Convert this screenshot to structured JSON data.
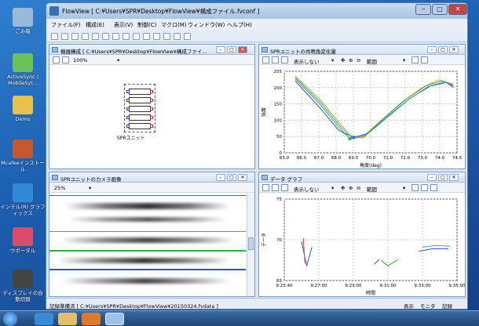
{
  "desktop": {
    "icons": [
      {
        "label": "ごみ箱",
        "color": "#9ab8d8"
      },
      {
        "label": "ActiveSync / MobileSyt...",
        "color": "#6bc25a"
      },
      {
        "label": "Demo",
        "color": "#e8c24a"
      },
      {
        "label": "Mcafeeインストール",
        "color": "#c7582e"
      },
      {
        "label": "インテル(R) グラフィックス",
        "color": "#2e8ad4"
      },
      {
        "label": "ウポータル",
        "color": "#d94d6a"
      },
      {
        "label": "ディスプレイの自動切替",
        "color": "#444444"
      }
    ]
  },
  "window": {
    "title": "FlowView [ C:¥Users¥SPR¥Desktop¥FlowView¥構成ファイル.fvconf ]",
    "menu": [
      "ファイル(F)",
      "構成(E)",
      "表示(V)",
      "制御(C)",
      "マクロ(M)",
      "ウィンドウ(W)",
      "ヘルプ(H)"
    ]
  },
  "panes": {
    "config": {
      "title": "機器構成 [ C:¥Users¥SPR¥Desktop¥FlowView¥構成ファイ...",
      "zoom": "100%",
      "unit_label": "SPRユニット"
    },
    "resonance": {
      "title": "SPRユニットの共鳴角変化量",
      "display_mode": "表示しない",
      "range_label": "範囲"
    },
    "camera": {
      "title": "SPRユニットのカメラ画像",
      "zoom": "25%"
    },
    "datagraph": {
      "title": "データ グラフ",
      "display_mode": "表示しない",
      "range_label": "範囲"
    }
  },
  "statusbar": {
    "path": "記録準備済 [ C:¥Users¥SPR¥Desktop¥FlowView¥20150324.fvdata ]",
    "items": [
      "表示",
      "モニタ",
      "記録"
    ]
  },
  "colors": {
    "accent": "#3c6fb0"
  },
  "chart_data": [
    {
      "type": "line",
      "title": "",
      "xlabel": "角度(deg)",
      "ylabel": "強度",
      "xlim": [
        65.0,
        74.5
      ],
      "ylim": [
        0,
        255
      ],
      "xticks": [
        "65.0",
        "66.0",
        "67.0",
        "68.0",
        "69.0",
        "70.0",
        "71.0",
        "72.0",
        "73.0",
        "74.0",
        "74.5"
      ],
      "yticks": [
        "0",
        "50",
        "100",
        "150",
        "200",
        "255"
      ],
      "series": [
        {
          "color": "#e0a020",
          "points": [
            [
              65.6,
              240
            ],
            [
              67.0,
              165
            ],
            [
              68.0,
              95
            ],
            [
              68.7,
              52
            ],
            [
              69.3,
              50
            ],
            [
              70.3,
              100
            ],
            [
              71.5,
              160
            ],
            [
              72.6,
              205
            ],
            [
              73.5,
              228
            ],
            [
              74.3,
              215
            ]
          ]
        },
        {
          "color": "#30b040",
          "points": [
            [
              65.6,
              232
            ],
            [
              67.0,
              150
            ],
            [
              68.0,
              80
            ],
            [
              68.6,
              44
            ],
            [
              69.4,
              50
            ],
            [
              70.5,
              110
            ],
            [
              71.7,
              168
            ],
            [
              72.8,
              210
            ],
            [
              73.7,
              225
            ],
            [
              74.3,
              210
            ]
          ]
        },
        {
          "color": "#3050d0",
          "points": [
            [
              65.6,
              225
            ],
            [
              67.0,
              138
            ],
            [
              68.0,
              70
            ],
            [
              68.8,
              48
            ],
            [
              69.6,
              60
            ],
            [
              70.7,
              115
            ],
            [
              71.9,
              170
            ],
            [
              73.0,
              208
            ],
            [
              73.9,
              220
            ],
            [
              74.3,
              205
            ]
          ]
        },
        {
          "color": "#40a0c0",
          "points": [
            [
              65.6,
              236
            ],
            [
              67.0,
              158
            ],
            [
              68.0,
              88
            ],
            [
              68.7,
              47
            ],
            [
              69.5,
              55
            ],
            [
              70.6,
              108
            ],
            [
              71.8,
              165
            ],
            [
              72.9,
              207
            ],
            [
              73.8,
              222
            ],
            [
              74.3,
              212
            ]
          ]
        }
      ]
    },
    {
      "type": "line",
      "title": "",
      "xlabel": "時間",
      "ylabel": "データ",
      "ylim": [
        65,
        75
      ],
      "xticks": [
        "9:25:40",
        "9:27:00",
        "9:29:00",
        "9:31:00",
        "9:33:00",
        "9:35:00"
      ],
      "yticks": [
        "65",
        "70",
        "75"
      ],
      "series": [
        {
          "color": "#3050d0",
          "points": [
            [
              0.1,
              69.8
            ],
            [
              0.13,
              66.8
            ],
            [
              0.16,
              69.1
            ]
          ]
        },
        {
          "color": "#d04040",
          "points": [
            [
              0.11,
              70.2
            ],
            [
              0.12,
              67.1
            ]
          ]
        },
        {
          "color": "#30a030",
          "points": [
            [
              0.56,
              67.5
            ],
            [
              0.6,
              66.8
            ],
            [
              0.66,
              67.6
            ]
          ]
        },
        {
          "color": "#8040b0",
          "points": [
            [
              0.52,
              67.0
            ],
            [
              0.55,
              67.6
            ]
          ]
        },
        {
          "color": "#3050d0",
          "points": [
            [
              0.78,
              68.6
            ],
            [
              0.86,
              68.9
            ],
            [
              0.95,
              68.9
            ]
          ]
        },
        {
          "color": "#40a0c0",
          "points": [
            [
              0.8,
              69.1
            ],
            [
              0.88,
              69.3
            ],
            [
              0.96,
              69.2
            ]
          ]
        }
      ]
    }
  ]
}
